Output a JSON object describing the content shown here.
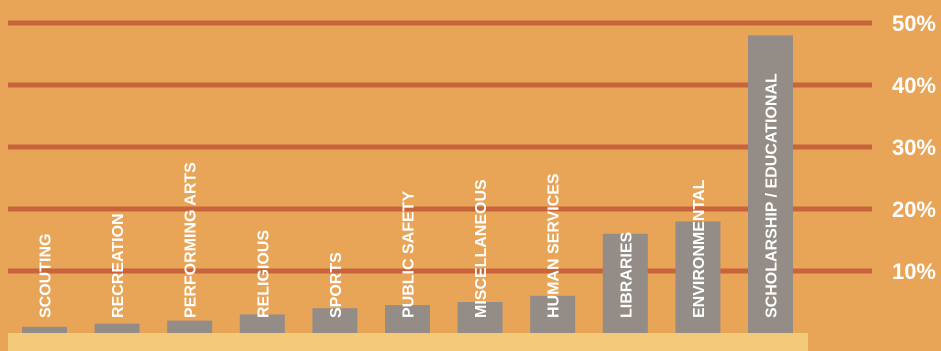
{
  "chart_data": {
    "type": "bar",
    "categories": [
      "SCOUTING",
      "RECREATION",
      "PERFORMING ARTS",
      "RELIGIOUS",
      "SPORTS",
      "PUBLIC SAFETY",
      "MISCELLANEOUS",
      "HUMAN SERVICES",
      "LIBRARIES",
      "ENVIRONMENTAL",
      "SCHOLARSHIP / EDUCATIONAL"
    ],
    "values": [
      1,
      1.5,
      2,
      3,
      4,
      4.5,
      5,
      6,
      16,
      18,
      48
    ],
    "yticks": [
      10,
      20,
      30,
      40,
      50
    ],
    "ytick_labels": [
      "10%",
      "20%",
      "30%",
      "40%",
      "50%"
    ],
    "ylim": [
      0,
      50
    ],
    "grid": true,
    "colors": {
      "background": "#e8a558",
      "gridline": "#c8643c",
      "bar": "#948c86",
      "baseline_band": "#f3c97a",
      "text": "#ffffff"
    }
  }
}
